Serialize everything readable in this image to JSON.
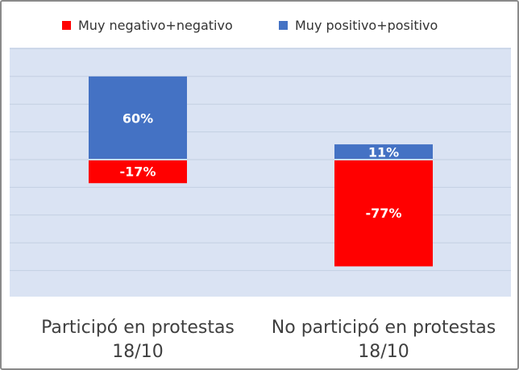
{
  "chart_data": {
    "type": "bar",
    "stacked": true,
    "categories": [
      "Participó en protestas 18/10",
      "No participó en protestas 18/10"
    ],
    "category_lines": [
      [
        "Participó en protestas",
        "18/10"
      ],
      [
        "No participó en protestas",
        "18/10"
      ]
    ],
    "series": [
      {
        "name": "Muy negativo+negativo",
        "values": [
          -17,
          -77
        ],
        "labels": [
          "-17%",
          "-77%"
        ],
        "color": "#ff0000"
      },
      {
        "name": "Muy positivo+positivo",
        "values": [
          60,
          11
        ],
        "labels": [
          "60%",
          "11%"
        ],
        "color": "#4472c4"
      }
    ],
    "ylim": [
      -100,
      80
    ],
    "grid": true,
    "legend_position": "top",
    "plot_background": "#dae3f3",
    "gridline_color": "#c3cfe2"
  }
}
